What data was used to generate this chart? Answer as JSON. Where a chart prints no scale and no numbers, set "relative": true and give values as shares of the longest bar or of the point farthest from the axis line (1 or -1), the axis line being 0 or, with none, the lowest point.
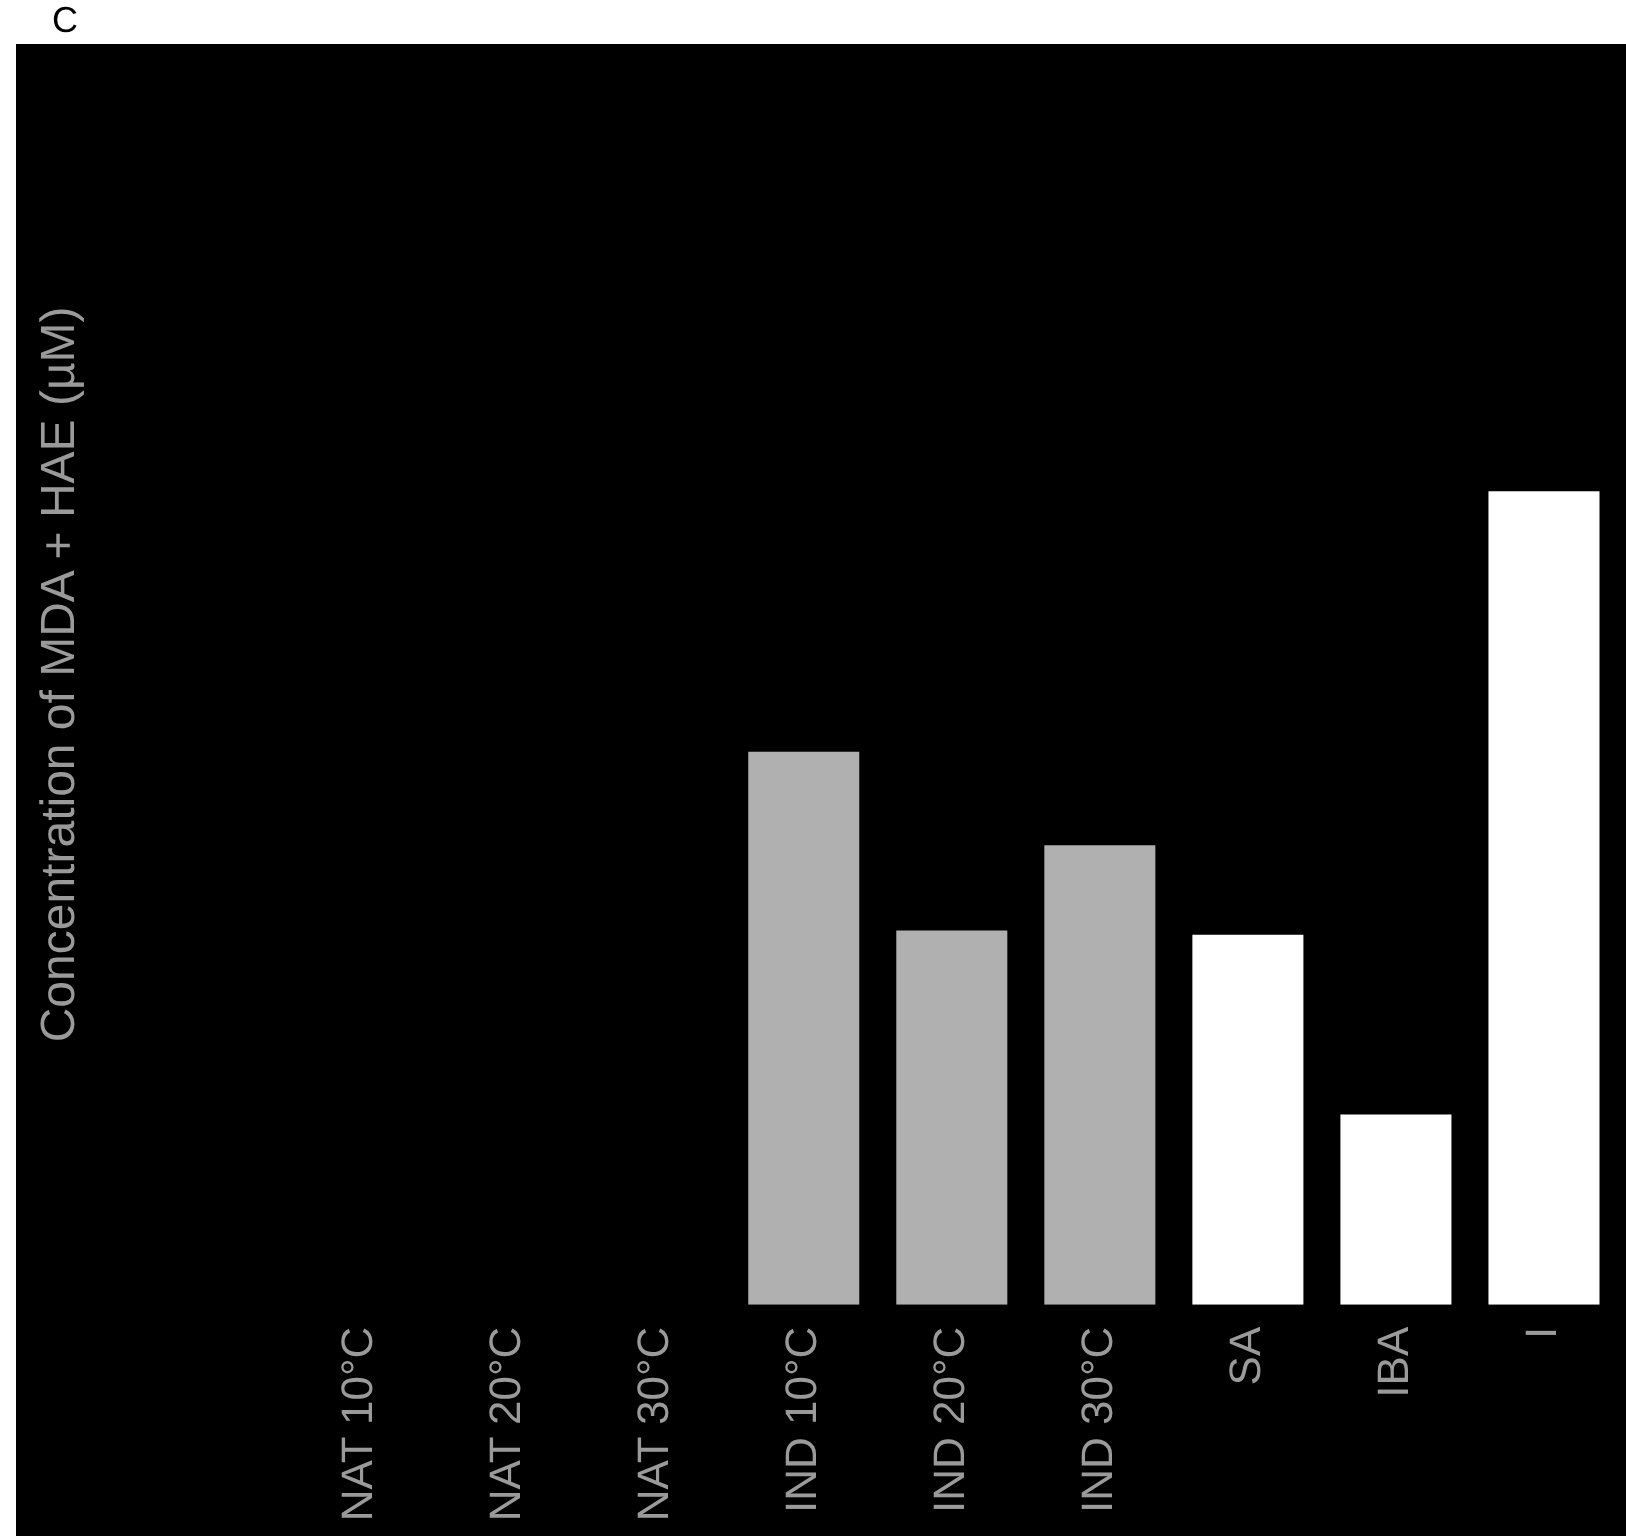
{
  "chart_data": {
    "type": "bar",
    "title": "C",
    "ylabel": "Concentration of MDA + HAE (µM)",
    "categories": [
      "NAT 10°C",
      "NAT 20°C",
      "NAT 30°C",
      "IND 10°C",
      "IND 20°C",
      "IND 30°C",
      "SA",
      "IBA",
      "I"
    ],
    "values": [
      null,
      null,
      null,
      0.68,
      0.46,
      0.565,
      0.455,
      0.234,
      1
    ],
    "colors": [
      "#000000",
      "#000000",
      "#000000",
      "#b0b0b0",
      "#b0b0b0",
      "#b0b0b0",
      "#ffffff",
      "#ffffff",
      "#ffffff"
    ],
    "relative": true
  }
}
